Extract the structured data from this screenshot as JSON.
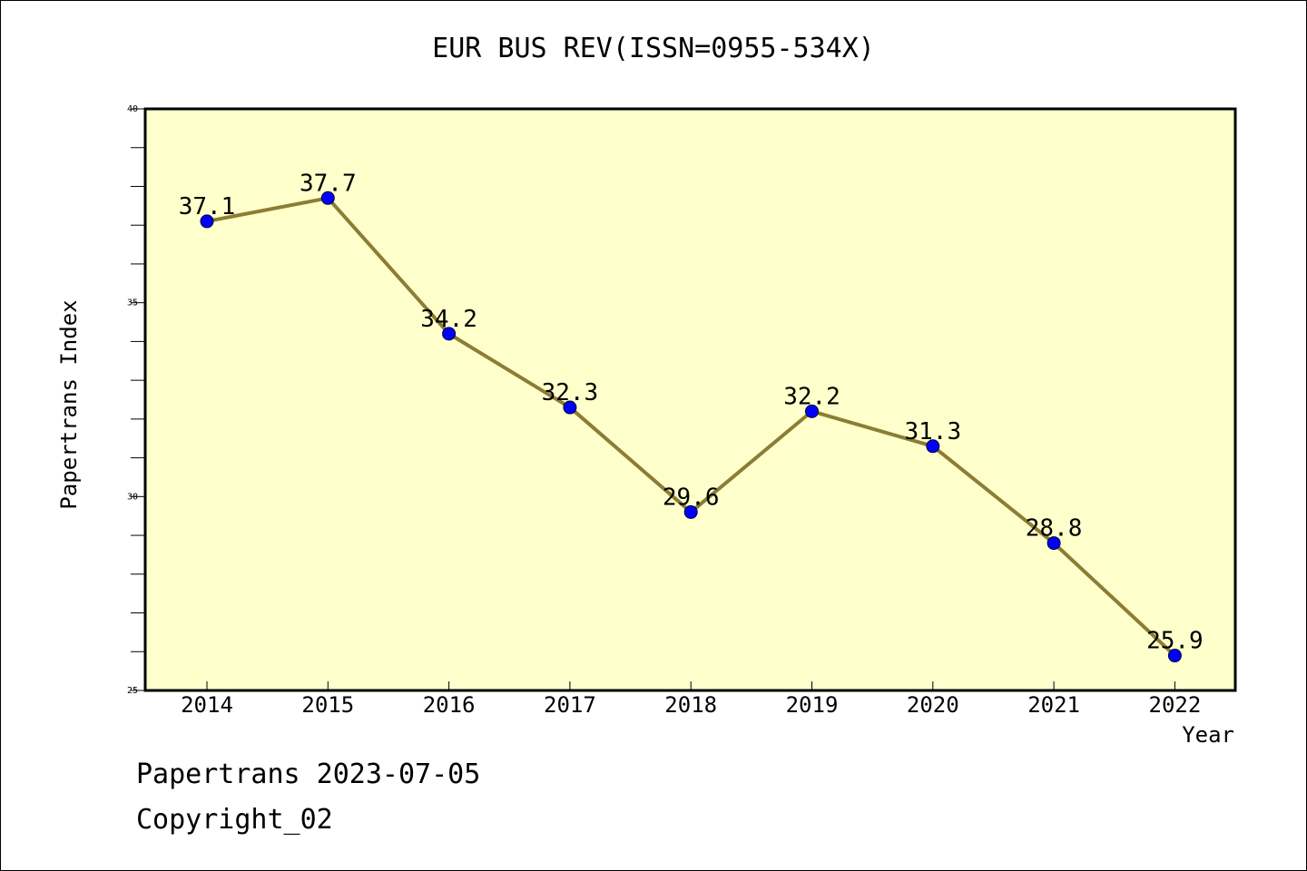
{
  "chart_data": {
    "type": "line",
    "title": "EUR BUS REV(ISSN=0955-534X)",
    "xlabel": "Year",
    "ylabel": "Papertrans Index",
    "categories": [
      "2014",
      "2015",
      "2016",
      "2017",
      "2018",
      "2019",
      "2020",
      "2021",
      "2022"
    ],
    "series": [
      {
        "values": [
          37.1,
          37.7,
          34.2,
          32.3,
          29.6,
          32.2,
          31.3,
          28.8,
          25.9
        ],
        "data_labels": [
          "37.1",
          "37.7",
          "34.2",
          "32.3",
          "29.6",
          "32.2",
          "31.3",
          "28.8",
          "25.9"
        ]
      }
    ],
    "ylim": [
      25,
      40
    ],
    "yticks": [
      "25",
      "30",
      "35",
      "40"
    ],
    "grid": false,
    "plot_background": "#ffffcc",
    "line_color": "#8b7d33",
    "marker_color": "#0000ff"
  },
  "footer": {
    "line1": "Papertrans 2023-07-05",
    "line2": "Copyright_02"
  }
}
